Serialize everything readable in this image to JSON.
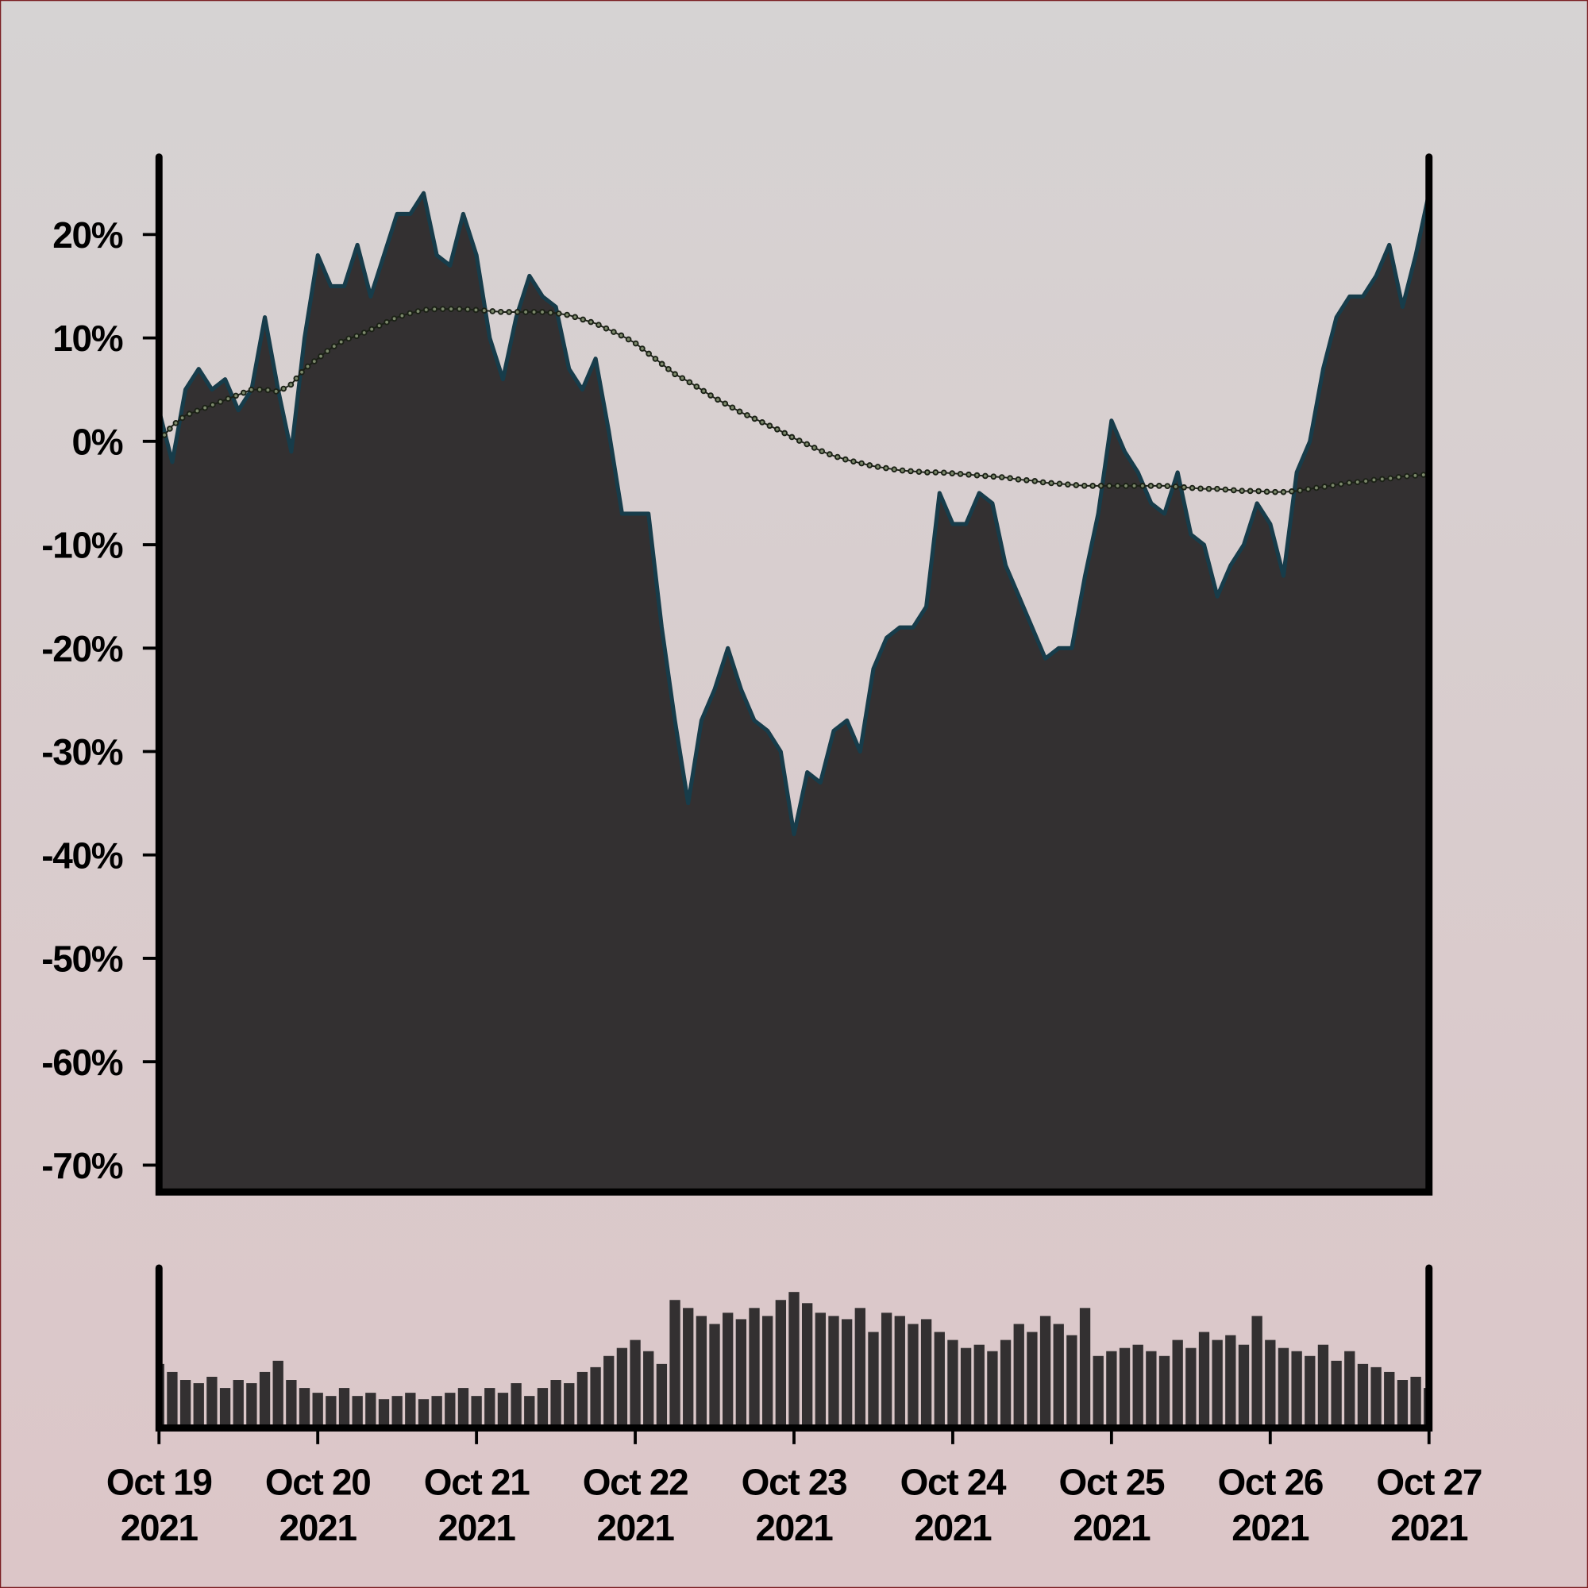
{
  "chart_data": [
    {
      "type": "area",
      "xlim": [
        "2021-10-19",
        "2021-10-27"
      ],
      "ylim": [
        -72.6,
        27.5
      ],
      "yticks": [
        {
          "value": 20,
          "label": "20%"
        },
        {
          "value": 10,
          "label": "10%"
        },
        {
          "value": 0,
          "label": "0%"
        },
        {
          "value": -10,
          "label": "-10%"
        },
        {
          "value": -20,
          "label": "-20%"
        },
        {
          "value": -30,
          "label": "-30%"
        },
        {
          "value": -40,
          "label": "-40%"
        },
        {
          "value": -50,
          "label": "-50%"
        },
        {
          "value": -60,
          "label": "-60%"
        },
        {
          "value": -70,
          "label": "-70%"
        }
      ],
      "series": [
        {
          "kind": "area",
          "color": "#333031",
          "line_color": "#173c4a",
          "values": [
            3,
            -2,
            5,
            7,
            5,
            6,
            3,
            5,
            12,
            5,
            -1,
            10,
            18,
            15,
            15,
            19,
            14,
            18,
            22,
            22,
            24,
            18,
            17,
            22,
            18,
            10,
            6,
            12,
            16,
            14,
            13,
            7,
            5,
            8,
            1,
            -7,
            -7,
            -7,
            -18,
            -27,
            -35,
            -27,
            -24,
            -20,
            -24,
            -27,
            -28,
            -30,
            -38,
            -32,
            -33,
            -28,
            -27,
            -30,
            -22,
            -19,
            -18,
            -18,
            -16,
            -5,
            -8,
            -8,
            -5,
            -6,
            -12,
            -15,
            -18,
            -21,
            -20,
            -20,
            -13,
            -7,
            2,
            -1,
            -3,
            -6,
            -7,
            -3,
            -9,
            -10,
            -15,
            -12,
            -10,
            -6,
            -8,
            -13,
            -3,
            0,
            7,
            12,
            14,
            14,
            16,
            19,
            13,
            18,
            24
          ]
        },
        {
          "kind": "line",
          "marker": "dots",
          "color": "#1b2116",
          "marker_color": "#7d8a6c",
          "values": [
            0,
            1.5,
            2.5,
            3,
            3.5,
            4,
            4.5,
            5,
            5,
            4.8,
            5.5,
            7,
            8,
            9,
            9.8,
            10.2,
            10.8,
            11.4,
            12,
            12.4,
            12.7,
            12.8,
            12.8,
            12.8,
            12.7,
            12.6,
            12.5,
            12.5,
            12.5,
            12.5,
            12.4,
            12.2,
            11.8,
            11.4,
            10.8,
            10.2,
            9.5,
            8.5,
            7.5,
            6.5,
            5.8,
            5,
            4.2,
            3.5,
            2.8,
            2.2,
            1.6,
            1,
            0.3,
            -0.3,
            -0.9,
            -1.4,
            -1.8,
            -2.1,
            -2.4,
            -2.6,
            -2.8,
            -2.9,
            -3,
            -3,
            -3.1,
            -3.2,
            -3.3,
            -3.4,
            -3.5,
            -3.7,
            -3.8,
            -4,
            -4.1,
            -4.2,
            -4.3,
            -4.3,
            -4.3,
            -4.3,
            -4.3,
            -4.3,
            -4.3,
            -4.4,
            -4.5,
            -4.6,
            -4.6,
            -4.7,
            -4.8,
            -4.8,
            -4.9,
            -4.9,
            -4.8,
            -4.6,
            -4.4,
            -4.2,
            -4,
            -3.9,
            -3.7,
            -3.6,
            -3.4,
            -3.3,
            -3.2
          ]
        }
      ]
    },
    {
      "type": "bar",
      "xlim": [
        "2021-10-19",
        "2021-10-27"
      ],
      "ylim": [
        0,
        100
      ],
      "color": "#333031",
      "values": [
        40,
        35,
        30,
        28,
        32,
        25,
        30,
        28,
        35,
        42,
        30,
        25,
        22,
        20,
        25,
        20,
        22,
        18,
        20,
        22,
        18,
        20,
        22,
        25,
        20,
        25,
        22,
        28,
        20,
        25,
        30,
        28,
        35,
        38,
        45,
        50,
        55,
        48,
        40,
        80,
        75,
        70,
        65,
        72,
        68,
        75,
        70,
        80,
        85,
        78,
        72,
        70,
        68,
        75,
        60,
        72,
        70,
        65,
        68,
        60,
        55,
        50,
        52,
        48,
        55,
        65,
        60,
        70,
        65,
        58,
        75,
        45,
        48,
        50,
        52,
        48,
        45,
        55,
        50,
        60,
        55,
        58,
        52,
        70,
        55,
        50,
        48,
        45,
        52,
        42,
        48,
        40,
        38,
        35,
        30,
        32,
        25
      ],
      "xticks": [
        {
          "value": "2021-10-19",
          "label": [
            "Oct 19",
            "2021"
          ]
        },
        {
          "value": "2021-10-20",
          "label": [
            "Oct 20",
            "2021"
          ]
        },
        {
          "value": "2021-10-21",
          "label": [
            "Oct 21",
            "2021"
          ]
        },
        {
          "value": "2021-10-22",
          "label": [
            "Oct 22",
            "2021"
          ]
        },
        {
          "value": "2021-10-23",
          "label": [
            "Oct 23",
            "2021"
          ]
        },
        {
          "value": "2021-10-24",
          "label": [
            "Oct 24",
            "2021"
          ]
        },
        {
          "value": "2021-10-25",
          "label": [
            "Oct 25",
            "2021"
          ]
        },
        {
          "value": "2021-10-26",
          "label": [
            "Oct 26",
            "2021"
          ]
        },
        {
          "value": "2021-10-27",
          "label": [
            "Oct 27",
            "2021"
          ]
        }
      ]
    }
  ]
}
